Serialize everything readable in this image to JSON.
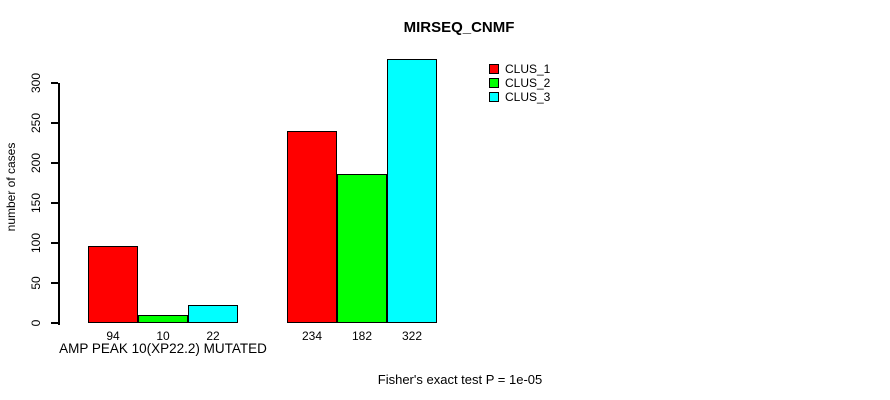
{
  "chart_data": {
    "type": "bar",
    "title": "MIRSEQ_CNMF",
    "ylabel": "number of cases",
    "xlabel": "",
    "ylim": [
      0,
      322
    ],
    "yticks": [
      0,
      50,
      100,
      150,
      200,
      250,
      300
    ],
    "grid": false,
    "categories": [
      "AMP PEAK 10(XP22.2) MUTATED",
      ""
    ],
    "series": [
      {
        "name": "CLUS_1",
        "color": "#ff0000",
        "values": [
          94,
          234
        ]
      },
      {
        "name": "CLUS_2",
        "color": "#00ff00",
        "values": [
          10,
          182
        ]
      },
      {
        "name": "CLUS_3",
        "color": "#00ffff",
        "values": [
          22,
          322
        ]
      }
    ],
    "bar_value_labels": [
      [
        94,
        10,
        22
      ],
      [
        234,
        182,
        322
      ]
    ],
    "legend_position": "top-right",
    "annotation": "Fisher's exact test P = 1e-05",
    "colors": {
      "background": "#ffffff",
      "bar_border": "#000000",
      "text": "#000000"
    }
  }
}
